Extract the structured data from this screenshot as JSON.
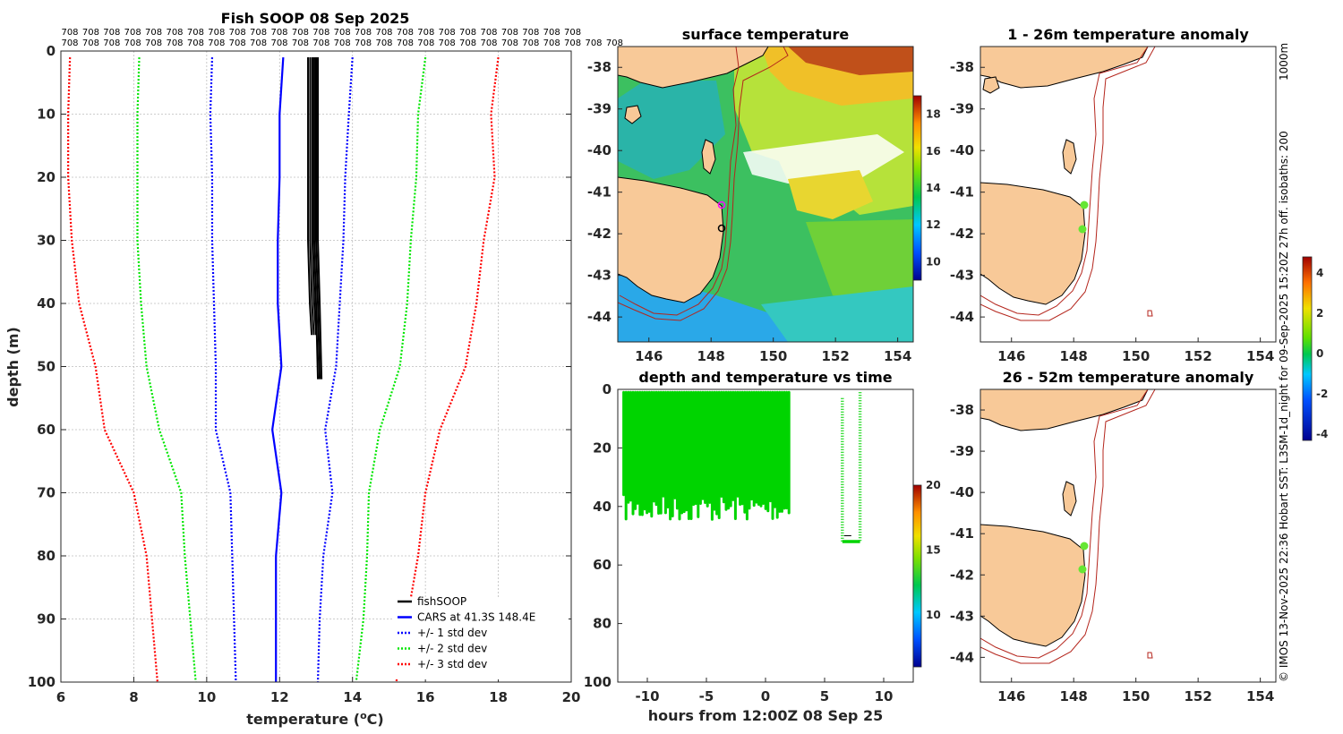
{
  "chart_data": [
    {
      "type": "line",
      "title": "Fish SOOP 08 Sep 2025",
      "top_label": "708",
      "xlabel": "temperature (°C)",
      "xlabel_main": "temperature (",
      "xlabel_sup": "o",
      "xlabel_end": "C)",
      "ylabel": "depth (m)",
      "xlim": [
        6,
        20
      ],
      "ylim": [
        0,
        100
      ],
      "x_ticks": [
        6,
        8,
        10,
        12,
        14,
        16,
        18,
        20
      ],
      "y_ticks": [
        0,
        10,
        20,
        30,
        40,
        50,
        60,
        70,
        80,
        90,
        100
      ],
      "depths": [
        1,
        10,
        20,
        30,
        40,
        50,
        60,
        70,
        80,
        90,
        100
      ],
      "series": [
        {
          "name": "fishSOOP",
          "color": "#000000",
          "style": "solid",
          "values": [
            12.9,
            12.9,
            12.9,
            12.9,
            12.95,
            13.0
          ]
        },
        {
          "name": "CARS at 41.3S 148.4E",
          "color": "#0000ff",
          "style": "solid",
          "values": [
            12.1,
            12.0,
            12.0,
            11.95,
            11.95,
            12.05,
            11.8,
            12.05,
            11.9,
            11.9,
            11.9
          ]
        },
        {
          "name": "+/- 1 std dev",
          "color": "#0000ff",
          "style": "dotted",
          "upper": [
            14.0,
            13.9,
            13.8,
            13.75,
            13.65,
            13.55,
            13.25,
            13.45,
            13.2,
            13.1,
            13.05
          ],
          "lower": [
            10.15,
            10.1,
            10.15,
            10.15,
            10.2,
            10.25,
            10.25,
            10.65,
            10.7,
            10.75,
            10.8
          ]
        },
        {
          "name": "+/- 2 std dev",
          "color": "#00e600",
          "style": "dotted",
          "upper": [
            16.0,
            15.8,
            15.75,
            15.6,
            15.5,
            15.3,
            14.75,
            14.45,
            14.4,
            14.3,
            14.1
          ],
          "lower": [
            8.15,
            8.1,
            8.1,
            8.1,
            8.2,
            8.35,
            8.7,
            9.3,
            9.4,
            9.55,
            9.7
          ]
        },
        {
          "name": "+/- 3 std dev",
          "color": "#ff0000",
          "style": "dotted",
          "upper": [
            18.0,
            17.8,
            17.9,
            17.6,
            17.4,
            17.1,
            16.4,
            16.0,
            15.8,
            15.5,
            15.2
          ],
          "lower": [
            6.25,
            6.2,
            6.2,
            6.3,
            6.5,
            6.95,
            7.2,
            8.0,
            8.35,
            8.5,
            8.65
          ]
        }
      ],
      "fish_depths": [
        1,
        10,
        20,
        30,
        40,
        52
      ],
      "legend": [
        "fishSOOP",
        "CARS at 41.3S 148.4E",
        "+/- 1 std dev",
        "+/- 2 std dev",
        "+/- 3 std dev"
      ]
    },
    {
      "type": "heatmap",
      "title": "surface temperature",
      "x_ticks": [
        146,
        148,
        150,
        152,
        154
      ],
      "y_ticks": [
        -38,
        -39,
        -40,
        -41,
        -42,
        -43,
        -44
      ],
      "xlim": [
        145,
        154.5
      ],
      "ylim": [
        -44.6,
        -37.5
      ],
      "colorbar_ticks": [
        10,
        12,
        14,
        16,
        18
      ],
      "colorbar_range": [
        9,
        19
      ]
    },
    {
      "type": "scatter",
      "title": "depth and temperature vs time",
      "xlabel": "hours from 12:00Z 08 Sep 25",
      "ylabel": "",
      "xlim": [
        -12.5,
        12.5
      ],
      "ylim": [
        0,
        100
      ],
      "x_ticks": [
        -10,
        -5,
        0,
        5,
        10
      ],
      "y_ticks": [
        0,
        20,
        40,
        60,
        80,
        100
      ],
      "colorbar_ticks": [
        10,
        15,
        20
      ],
      "colorbar_range": [
        6,
        20
      ],
      "segments": [
        {
          "start_h": -12,
          "end_h": 2,
          "min_depth": 1,
          "max_depth": 45
        },
        {
          "start_h": 6.5,
          "end_h": 8,
          "min_depth": 1,
          "max_depth": 52
        }
      ]
    },
    {
      "type": "heatmap",
      "title": "1 - 26m temperature anomaly",
      "x_ticks": [
        146,
        148,
        150,
        152,
        154
      ],
      "y_ticks": [
        -38,
        -39,
        -40,
        -41,
        -42,
        -43,
        -44
      ],
      "points": [
        [
          148.3,
          -41.3
        ],
        [
          148.3,
          -41.9
        ]
      ]
    },
    {
      "type": "heatmap",
      "title": "26 - 52m temperature anomaly",
      "x_ticks": [
        146,
        148,
        150,
        152,
        154
      ],
      "y_ticks": [
        -38,
        -39,
        -40,
        -41,
        -42,
        -43,
        -44
      ],
      "points": [
        [
          148.3,
          -41.3
        ],
        [
          148.3,
          -41.9
        ]
      ]
    }
  ],
  "anomaly_colorbar": {
    "ticks": [
      -4,
      -2,
      0,
      2,
      4
    ],
    "range": [
      -4.3,
      4.8
    ]
  },
  "side_text": {
    "left": "© IMOS 13-Nov-2025 22:36 Hobart SST: L3SM-1d_night for 09-Sep-2025 15:20Z 27h off. isobaths: 200",
    "right": "1000m"
  },
  "colors": {
    "land": "#f8c998",
    "isobath": "#b4251c",
    "marker_green": "#00d400",
    "anomaly_point": "#66e633",
    "track_magenta": "#ff00ff"
  }
}
